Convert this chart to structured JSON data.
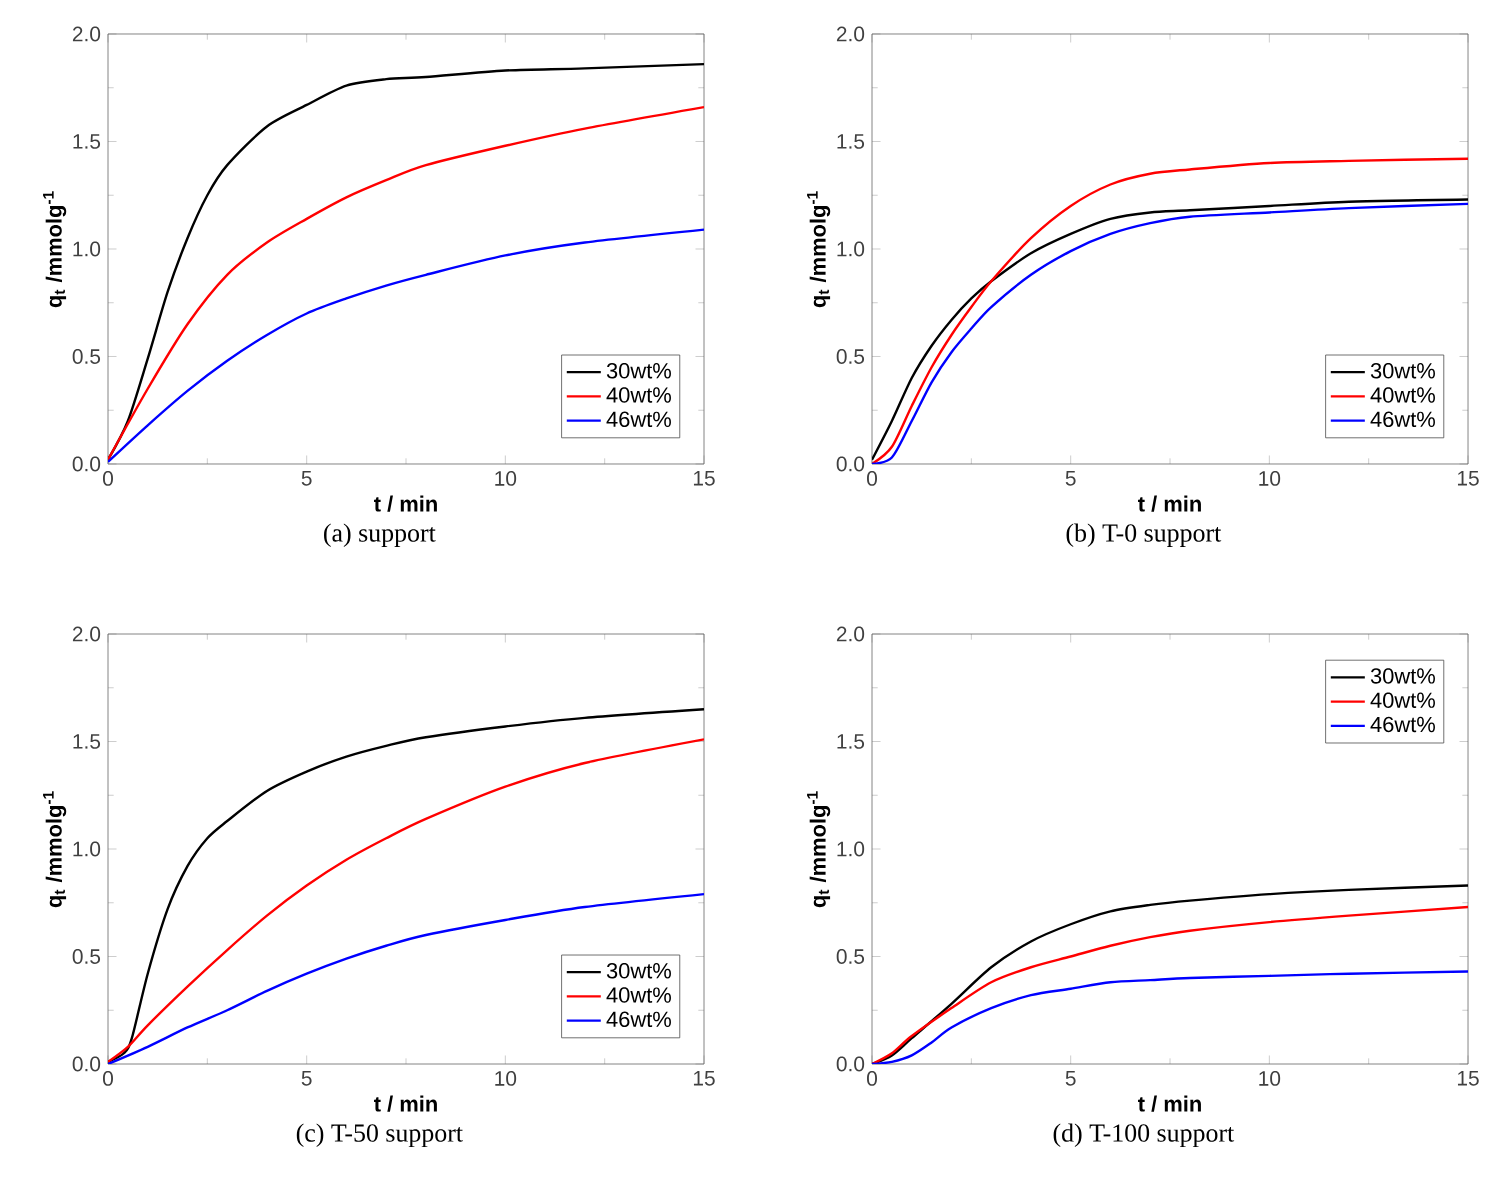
{
  "chart_data": [
    {
      "type": "line",
      "xlabel": "t / min",
      "ylabel": "q$_{t}$ /mmolg$^{-1}$",
      "annotations": [
        "(a) support"
      ],
      "xlim": [
        0,
        15
      ],
      "ylim": [
        0,
        2.0
      ],
      "xticks": [
        0,
        5,
        10,
        15
      ],
      "yticks": [
        {
          "value": 0,
          "label": "0.0"
        },
        {
          "value": 0.5,
          "label": "0.5"
        },
        {
          "value": 1,
          "label": "1.0"
        },
        {
          "value": 1.5,
          "label": "1.5"
        },
        {
          "value": 2,
          "label": "2.0"
        }
      ],
      "legend": "bottom right",
      "series": [
        {
          "name": "30wt%",
          "color": "#000000",
          "x": [
            0,
            0.5,
            1,
            1.5,
            2,
            2.5,
            3,
            4,
            5,
            6,
            7,
            8,
            10,
            12,
            15
          ],
          "values": [
            0.02,
            0.2,
            0.49,
            0.8,
            1.05,
            1.25,
            1.39,
            1.57,
            1.67,
            1.76,
            1.79,
            1.8,
            1.83,
            1.84,
            1.86
          ]
        },
        {
          "name": "40wt%",
          "color": "#ff0000",
          "x": [
            0,
            1,
            2,
            3,
            4,
            5,
            6,
            7,
            8,
            10,
            12,
            15
          ],
          "values": [
            0.02,
            0.35,
            0.65,
            0.88,
            1.03,
            1.14,
            1.24,
            1.32,
            1.39,
            1.48,
            1.56,
            1.66
          ]
        },
        {
          "name": "46wt%",
          "color": "#0000ff",
          "x": [
            0,
            1,
            2,
            3,
            4,
            5,
            6,
            7,
            8,
            10,
            12,
            15
          ],
          "values": [
            0.01,
            0.18,
            0.34,
            0.48,
            0.6,
            0.7,
            0.77,
            0.83,
            0.88,
            0.97,
            1.03,
            1.09
          ]
        }
      ]
    },
    {
      "type": "line",
      "xlabel": "t / min",
      "ylabel": "q$_{t}$ /mmolg$^{-1}$",
      "annotations": [
        "(b) T-0 support"
      ],
      "xlim": [
        0,
        15
      ],
      "ylim": [
        0,
        2.0
      ],
      "xticks": [
        0,
        5,
        10,
        15
      ],
      "yticks": [
        {
          "value": 0,
          "label": "0.0"
        },
        {
          "value": 0.5,
          "label": "0.5"
        },
        {
          "value": 1,
          "label": "1.0"
        },
        {
          "value": 1.5,
          "label": "1.5"
        },
        {
          "value": 2,
          "label": "2.0"
        }
      ],
      "legend": "bottom right",
      "series": [
        {
          "name": "30wt%",
          "color": "#000000",
          "x": [
            0,
            0.5,
            1,
            1.5,
            2,
            2.5,
            3,
            4,
            5,
            6,
            7,
            8,
            10,
            12,
            15
          ],
          "values": [
            0.02,
            0.2,
            0.4,
            0.55,
            0.67,
            0.77,
            0.85,
            0.98,
            1.07,
            1.14,
            1.17,
            1.18,
            1.2,
            1.22,
            1.23
          ]
        },
        {
          "name": "40wt%",
          "color": "#ff0000",
          "x": [
            0,
            0.5,
            1,
            1.5,
            2,
            2.5,
            3,
            4,
            5,
            6,
            7,
            8,
            10,
            12,
            15
          ],
          "values": [
            0,
            0.08,
            0.27,
            0.45,
            0.6,
            0.73,
            0.85,
            1.05,
            1.2,
            1.3,
            1.35,
            1.37,
            1.4,
            1.41,
            1.42
          ]
        },
        {
          "name": "46wt%",
          "color": "#0000ff",
          "x": [
            0,
            0.5,
            1,
            1.5,
            2,
            2.5,
            3,
            4,
            5,
            6,
            7,
            8,
            10,
            12,
            15
          ],
          "values": [
            0,
            0.03,
            0.2,
            0.38,
            0.52,
            0.63,
            0.73,
            0.88,
            0.99,
            1.07,
            1.12,
            1.15,
            1.17,
            1.19,
            1.21
          ]
        }
      ]
    },
    {
      "type": "line",
      "xlabel": "t / min",
      "ylabel": "q$_{t}$ /mmolg$^{-1}$",
      "annotations": [
        "(c) T-50 support"
      ],
      "xlim": [
        0,
        15
      ],
      "ylim": [
        0,
        2.0
      ],
      "xticks": [
        0,
        5,
        10,
        15
      ],
      "yticks": [
        {
          "value": 0,
          "label": "0.0"
        },
        {
          "value": 0.5,
          "label": "0.5"
        },
        {
          "value": 1,
          "label": "1.0"
        },
        {
          "value": 1.5,
          "label": "1.5"
        },
        {
          "value": 2,
          "label": "2.0"
        }
      ],
      "legend": "bottom right",
      "series": [
        {
          "name": "30wt%",
          "color": "#000000",
          "x": [
            0,
            0.4,
            0.6,
            1,
            1.5,
            2,
            2.5,
            3,
            4,
            5,
            6,
            7,
            8,
            10,
            12,
            15
          ],
          "values": [
            0.01,
            0.05,
            0.12,
            0.42,
            0.72,
            0.92,
            1.05,
            1.13,
            1.27,
            1.36,
            1.43,
            1.48,
            1.52,
            1.57,
            1.61,
            1.65
          ]
        },
        {
          "name": "40wt%",
          "color": "#ff0000",
          "x": [
            0,
            0.5,
            1,
            2,
            3,
            4,
            5,
            6,
            7,
            8,
            10,
            12,
            15
          ],
          "values": [
            0.01,
            0.08,
            0.18,
            0.36,
            0.53,
            0.69,
            0.83,
            0.95,
            1.05,
            1.14,
            1.29,
            1.4,
            1.51
          ]
        },
        {
          "name": "46wt%",
          "color": "#0000ff",
          "x": [
            0,
            1,
            2,
            3,
            4,
            5,
            6,
            7,
            8,
            10,
            12,
            15
          ],
          "values": [
            0,
            0.08,
            0.17,
            0.25,
            0.34,
            0.42,
            0.49,
            0.55,
            0.6,
            0.67,
            0.73,
            0.79
          ]
        }
      ]
    },
    {
      "type": "line",
      "xlabel": "t / min",
      "ylabel": "q$_{t}$ /mmolg$^{-1}$",
      "annotations": [
        "(d) T-100 support"
      ],
      "xlim": [
        0,
        15
      ],
      "ylim": [
        0,
        2.0
      ],
      "xticks": [
        0,
        5,
        10,
        15
      ],
      "yticks": [
        {
          "value": 0,
          "label": "0.0"
        },
        {
          "value": 0.5,
          "label": "0.5"
        },
        {
          "value": 1,
          "label": "1.0"
        },
        {
          "value": 1.5,
          "label": "1.5"
        },
        {
          "value": 2,
          "label": "2.0"
        }
      ],
      "legend": "top right",
      "series": [
        {
          "name": "30wt%",
          "color": "#000000",
          "x": [
            0,
            0.5,
            1,
            2,
            3,
            4,
            5,
            6,
            7,
            8,
            10,
            12,
            15
          ],
          "values": [
            0,
            0.04,
            0.12,
            0.28,
            0.45,
            0.57,
            0.65,
            0.71,
            0.74,
            0.76,
            0.79,
            0.81,
            0.83
          ]
        },
        {
          "name": "40wt%",
          "color": "#ff0000",
          "x": [
            0,
            0.5,
            1,
            2,
            3,
            4,
            5,
            6,
            7,
            8,
            10,
            12,
            15
          ],
          "values": [
            0,
            0.05,
            0.13,
            0.26,
            0.38,
            0.45,
            0.5,
            0.55,
            0.59,
            0.62,
            0.66,
            0.69,
            0.73
          ]
        },
        {
          "name": "46wt%",
          "color": "#0000ff",
          "x": [
            0,
            0.5,
            1,
            1.5,
            2,
            3,
            4,
            5,
            6,
            7,
            8,
            10,
            12,
            15
          ],
          "values": [
            0,
            0.01,
            0.04,
            0.1,
            0.17,
            0.26,
            0.32,
            0.35,
            0.38,
            0.39,
            0.4,
            0.41,
            0.42,
            0.43
          ]
        }
      ]
    }
  ]
}
